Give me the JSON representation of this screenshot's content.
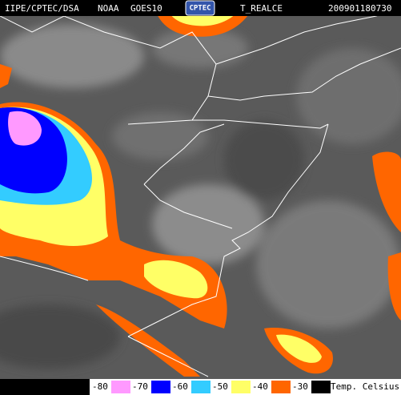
{
  "header": {
    "source": "IIPE/CPTEC/DSA",
    "agency": "NOAA",
    "satellite": "GOES10",
    "logo": "CPTEC",
    "product": "T_REALCE",
    "timestamp": "200901180730"
  },
  "legend": {
    "items": [
      {
        "label": "-80",
        "color": "#ff99ff"
      },
      {
        "label": "-70",
        "color": "#0000ff"
      },
      {
        "label": "-60",
        "color": "#33ccff"
      },
      {
        "label": "-50",
        "color": "#ffff66"
      },
      {
        "label": "-40",
        "color": "#ff6600"
      },
      {
        "label": "-30",
        "color": "#000000"
      }
    ],
    "caption": "Temp. Celsius"
  }
}
